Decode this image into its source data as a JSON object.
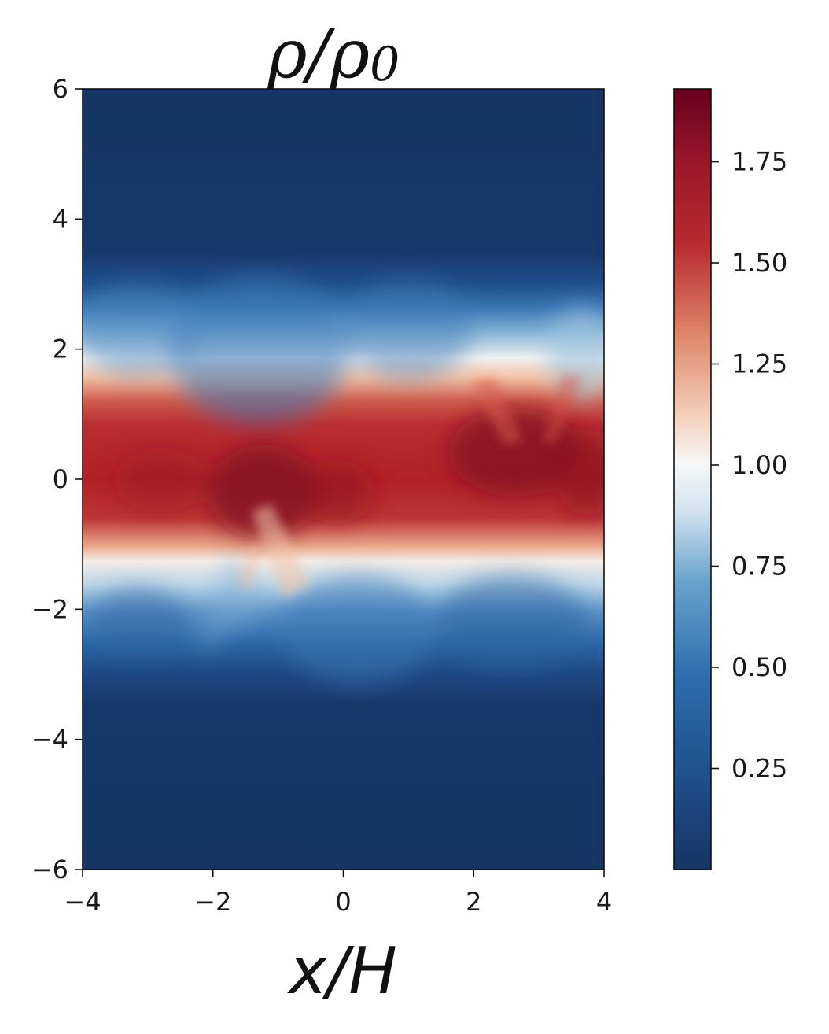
{
  "chart_data": {
    "type": "heatmap",
    "title": "ρ/ρ0",
    "title_main": "ρ/ρ",
    "title_sub": "0",
    "xlabel": "x/H",
    "ylabel": "",
    "xlim": [
      -4,
      4
    ],
    "ylim": [
      -6,
      6
    ],
    "xticks": [
      {
        "value": -4,
        "label": "−4"
      },
      {
        "value": -2,
        "label": "−2"
      },
      {
        "value": 0,
        "label": "0"
      },
      {
        "value": 2,
        "label": "2"
      },
      {
        "value": 4,
        "label": "4"
      }
    ],
    "yticks": [
      {
        "value": 6,
        "label": "6"
      },
      {
        "value": 4,
        "label": "4"
      },
      {
        "value": 2,
        "label": "2"
      },
      {
        "value": 0,
        "label": "0"
      },
      {
        "value": -2,
        "label": "−2"
      },
      {
        "value": -4,
        "label": "−4"
      },
      {
        "value": -6,
        "label": "−6"
      }
    ],
    "colormap": "RdBu_r",
    "colorbar": {
      "range": [
        0.0,
        1.93
      ],
      "ticks": [
        {
          "value": 0.25,
          "label": "0.25"
        },
        {
          "value": 0.5,
          "label": "0.50"
        },
        {
          "value": 0.75,
          "label": "0.75"
        },
        {
          "value": 1.0,
          "label": "1.00"
        },
        {
          "value": 1.25,
          "label": "1.25"
        },
        {
          "value": 1.5,
          "label": "1.50"
        },
        {
          "value": 1.75,
          "label": "1.75"
        }
      ]
    },
    "field_summary": {
      "background_value": 0.0,
      "midplane_peak_value": 1.9,
      "dense_band_halfwidth_H": 1.0,
      "unit_density_contour_H": 1.35,
      "low_density_edge_H": 3.0
    },
    "colors": {
      "dark_blue": "#163564",
      "blue": "#2f6db0",
      "white": "#f6f7f7",
      "red": "#b92a2f",
      "dark_red": "#67001f"
    }
  }
}
